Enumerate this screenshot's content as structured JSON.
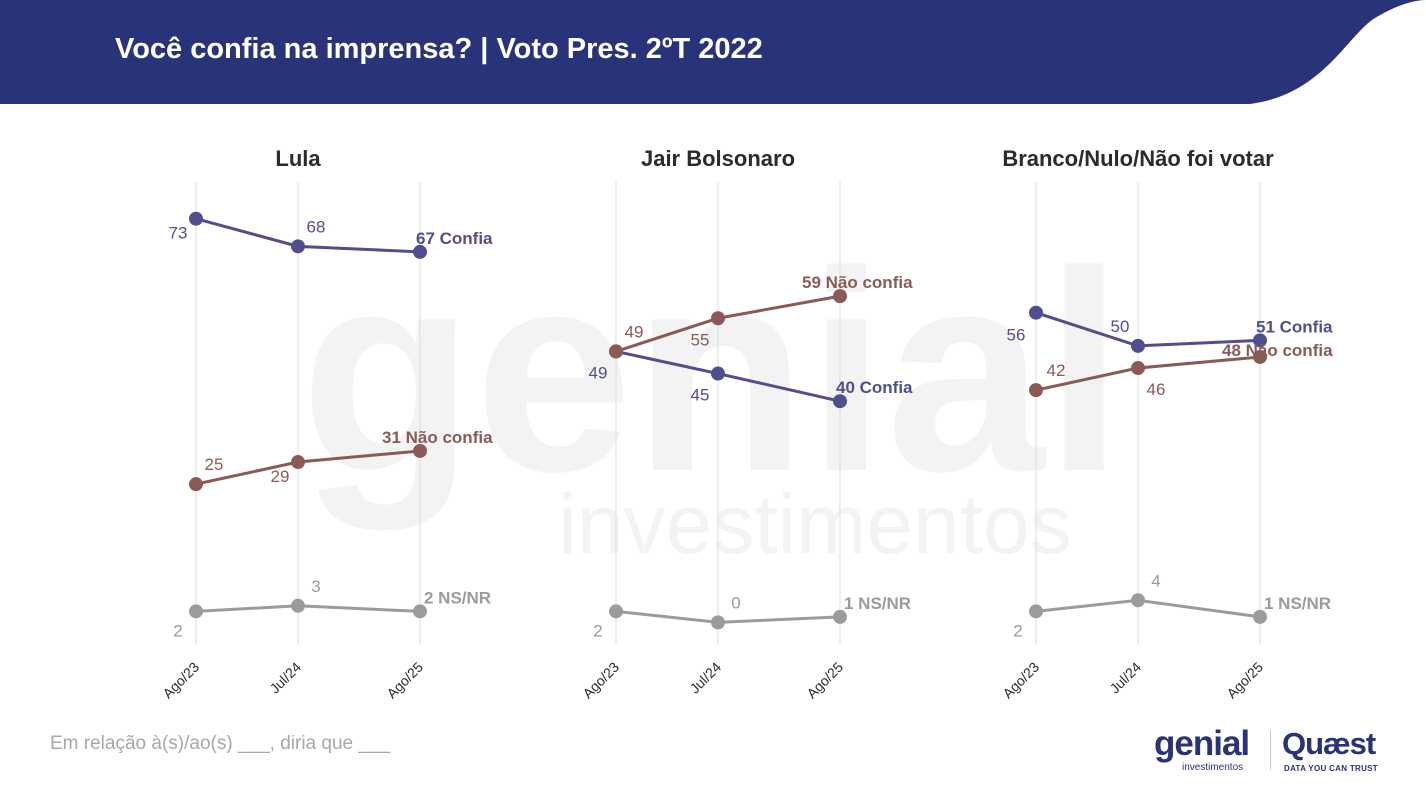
{
  "header": {
    "title": "Você confia na imprensa? | Voto Pres. 2ºT 2022"
  },
  "watermark": {
    "brand": "genial",
    "sub": "investimentos"
  },
  "footnote": "Em relação à(s)/ao(s) ___, diria que ___",
  "logos": {
    "genial": "genial",
    "genial_sub": "investimentos",
    "quaest": "Quæst",
    "quaest_sub": "DATA YOU CAN TRUST"
  },
  "colors": {
    "header": "#29337a",
    "confia": "#4f4f8f",
    "nao_confia": "#8c5a55",
    "ns_nr": "#9b9b9b",
    "gridline": "#e2e2e2"
  },
  "chart_data": [
    {
      "type": "line",
      "title": "Lula",
      "x": [
        "Ago/23",
        "Jul/24",
        "Ago/25"
      ],
      "ylim": [
        0,
        80
      ],
      "series": [
        {
          "name": "Confia",
          "values": [
            73,
            68,
            67
          ],
          "end_label": "67 Confia"
        },
        {
          "name": "Não confia",
          "values": [
            25,
            29,
            31
          ],
          "end_label": "31 Não confia"
        },
        {
          "name": "NS/NR",
          "values": [
            2,
            3,
            2
          ],
          "end_label": "2 NS/NR"
        }
      ]
    },
    {
      "type": "line",
      "title": "Jair Bolsonaro",
      "x": [
        "Ago/23",
        "Jul/24",
        "Ago/25"
      ],
      "ylim": [
        0,
        80
      ],
      "series": [
        {
          "name": "Confia",
          "values": [
            49,
            45,
            40
          ],
          "end_label": "40 Confia"
        },
        {
          "name": "Não confia",
          "values": [
            49,
            55,
            59
          ],
          "end_label": "59 Não confia"
        },
        {
          "name": "NS/NR",
          "values": [
            2,
            0,
            1
          ],
          "end_label": "1 NS/NR"
        }
      ]
    },
    {
      "type": "line",
      "title": "Branco/Nulo/Não foi votar",
      "x": [
        "Ago/23",
        "Jul/24",
        "Ago/25"
      ],
      "ylim": [
        0,
        80
      ],
      "series": [
        {
          "name": "Confia",
          "values": [
            56,
            50,
            51
          ],
          "end_label": "51 Confia"
        },
        {
          "name": "Não confia",
          "values": [
            42,
            46,
            48
          ],
          "end_label": "48 Não confia"
        },
        {
          "name": "NS/NR",
          "values": [
            2,
            4,
            1
          ],
          "end_label": "1 NS/NR"
        }
      ]
    }
  ]
}
